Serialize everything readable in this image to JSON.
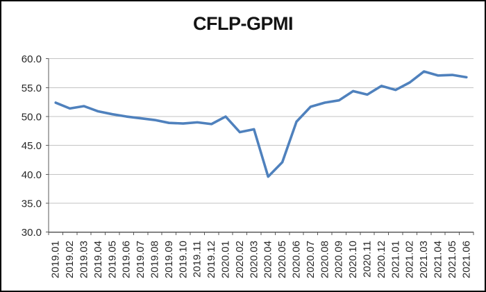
{
  "chart_data": {
    "type": "line",
    "title": "CFLP-GPMI",
    "categories": [
      "2019.01",
      "2019.02",
      "2019.03",
      "2019.04",
      "2019.05",
      "2019.06",
      "2019.07",
      "2019.08",
      "2019.09",
      "2019.10",
      "2019.11",
      "2019.12",
      "2020.01",
      "2020.02",
      "2020.03",
      "2020.04",
      "2020.05",
      "2020.06",
      "2020.07",
      "2020.08",
      "2020.09",
      "2020.10",
      "2020.11",
      "2020.12",
      "2021.01",
      "2021.02",
      "2021.03",
      "2021.04",
      "2021.05",
      "2021.06"
    ],
    "series": [
      {
        "name": "CFLP-GPMI",
        "values": [
          52.4,
          51.4,
          51.8,
          50.9,
          50.4,
          50.0,
          49.7,
          49.4,
          48.9,
          48.8,
          49.0,
          48.7,
          50.0,
          47.3,
          47.8,
          39.6,
          42.1,
          49.1,
          51.7,
          52.4,
          52.8,
          54.4,
          53.8,
          55.3,
          54.6,
          55.9,
          57.8,
          57.1,
          57.2,
          56.8
        ]
      }
    ],
    "xlabel": "",
    "ylabel": "",
    "ylim": [
      30,
      60
    ],
    "ytick_step": 5,
    "ytick_labels": [
      "30.0",
      "35.0",
      "40.0",
      "45.0",
      "50.0",
      "55.0",
      "60.0"
    ],
    "grid": "horizontal",
    "legend_position": "none",
    "colors": {
      "line": "#4F81BD",
      "gridline": "#C3C3C3",
      "axis": "#595959",
      "label_text": "#262626",
      "title_text": "#141414",
      "background": "#FFFFFF",
      "frame_border": "#000000"
    }
  }
}
